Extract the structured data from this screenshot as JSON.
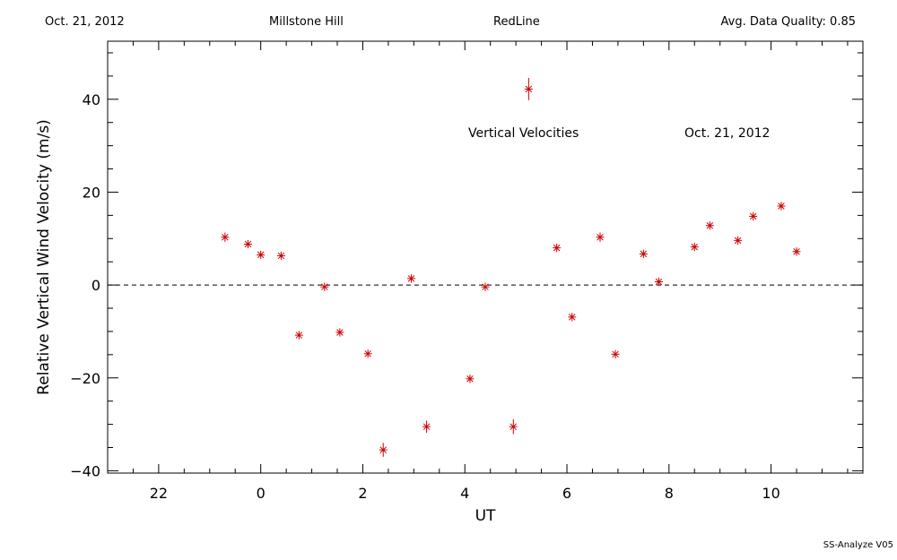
{
  "header": {
    "date": "Oct. 21, 2012",
    "site": "Millstone Hill",
    "line": "RedLine",
    "quality": "Avg. Data Quality: 0.85"
  },
  "footer": "SS-Analyze V05",
  "chart_data": {
    "type": "scatter",
    "title": "",
    "xlabel": "UT",
    "ylabel": "Relative Vertical Wind Velocity (m/s)",
    "xlim": [
      21.0,
      11.8
    ],
    "ylim": [
      -40.5,
      52.5
    ],
    "x_ticks": [
      22,
      0,
      2,
      4,
      6,
      8,
      10
    ],
    "y_ticks": [
      -40,
      -20,
      0,
      20,
      40
    ],
    "zero_line": true,
    "grid": false,
    "marker_color": "#cc0000",
    "annotations": [
      "Vertical Velocities",
      "Oct. 21, 2012"
    ],
    "series": [
      {
        "points": [
          {
            "x": 23.3,
            "y": 10.3,
            "err": 1.0
          },
          {
            "x": 23.75,
            "y": 8.8,
            "err": 0.9
          },
          {
            "x": 24.0,
            "y": 6.5,
            "err": 0.9
          },
          {
            "x": 24.4,
            "y": 6.3,
            "err": 0.9
          },
          {
            "x": 24.75,
            "y": -10.8,
            "err": 0.9
          },
          {
            "x": 25.25,
            "y": -0.4,
            "err": 0.9
          },
          {
            "x": 25.55,
            "y": -10.2,
            "err": 0.9
          },
          {
            "x": 26.1,
            "y": -14.8,
            "err": 0.9
          },
          {
            "x": 26.4,
            "y": -35.5,
            "err": 1.5
          },
          {
            "x": 26.95,
            "y": 1.4,
            "err": 0.9
          },
          {
            "x": 27.25,
            "y": -30.5,
            "err": 1.3
          },
          {
            "x": 28.1,
            "y": -20.2,
            "err": 0.9
          },
          {
            "x": 28.4,
            "y": -0.4,
            "err": 0.9
          },
          {
            "x": 28.95,
            "y": -30.5,
            "err": 1.6
          },
          {
            "x": 29.25,
            "y": 42.2,
            "err": 2.4
          },
          {
            "x": 29.8,
            "y": 8.0,
            "err": 0.9
          },
          {
            "x": 30.1,
            "y": -6.9,
            "err": 0.9
          },
          {
            "x": 30.65,
            "y": 10.3,
            "err": 1.0
          },
          {
            "x": 30.95,
            "y": -14.9,
            "err": 0.9
          },
          {
            "x": 31.5,
            "y": 6.7,
            "err": 0.9
          },
          {
            "x": 31.8,
            "y": 0.7,
            "err": 0.9
          },
          {
            "x": 32.5,
            "y": 8.2,
            "err": 0.9
          },
          {
            "x": 32.8,
            "y": 12.8,
            "err": 0.9
          },
          {
            "x": 33.35,
            "y": 9.6,
            "err": 0.9
          },
          {
            "x": 33.65,
            "y": 14.8,
            "err": 0.9
          },
          {
            "x": 34.2,
            "y": 17.0,
            "err": 0.9
          },
          {
            "x": 34.5,
            "y": 7.2,
            "err": 0.9
          }
        ]
      }
    ]
  }
}
